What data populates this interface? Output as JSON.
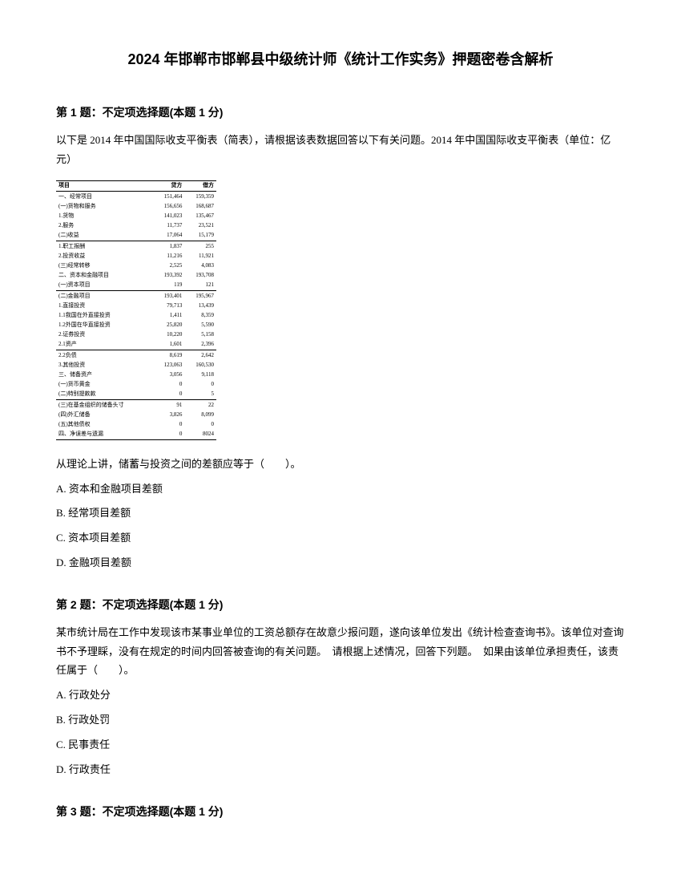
{
  "title": "2024 年邯郸市邯郸县中级统计师《统计工作实务》押题密卷含解析",
  "q1": {
    "header": "第 1 题：不定项选择题(本题 1 分)",
    "text": "以下是 2014 年中国国际收支平衡表（简表），请根据该表数据回答以下有关问题。2014 年中国国际收支平衡表（单位：亿元）",
    "prompt": "从理论上讲，储蓄与投资之间的差额应等于（　　）。",
    "options": {
      "a": "A. 资本和金融项目差额",
      "b": "B. 经常项目差额",
      "c": "C. 资本项目差额",
      "d": "D. 金融项目差额"
    }
  },
  "q2": {
    "header": "第 2 题：不定项选择题(本题 1 分)",
    "text": "某市统计局在工作中发现该市某事业单位的工资总额存在故意少报问题，遂向该单位发出《统计检查查询书》。该单位对查询书不予理睬，没有在规定的时间内回答被查询的有关问题。　请根据上述情况，回答下列题。　如果由该单位承担责任，该责任属于（　　）。",
    "options": {
      "a": "A. 行政处分",
      "b": "B. 行政处罚",
      "c": "C. 民事责任",
      "d": "D. 行政责任"
    }
  },
  "q3": {
    "header": "第 3 题：不定项选择题(本题 1 分)"
  },
  "table": {
    "headers": [
      "项目",
      "贷方",
      "借方"
    ],
    "rows": [
      {
        "cells": [
          "一、经常项目",
          "151,464",
          "159,359"
        ],
        "section": true
      },
      {
        "cells": [
          "(一)货物和服务",
          "156,656",
          "168,687"
        ],
        "section": false
      },
      {
        "cells": [
          "1.货物",
          "141,023",
          "135,467"
        ],
        "section": false
      },
      {
        "cells": [
          "2.服务",
          "11,737",
          "23,521"
        ],
        "section": false
      },
      {
        "cells": [
          "(二)收益",
          "17,064",
          "15,179"
        ],
        "section": false
      },
      {
        "cells": [
          "1.职工报酬",
          "1,837",
          "255"
        ],
        "section": true
      },
      {
        "cells": [
          "2.投资收益",
          "11,216",
          "11,921"
        ],
        "section": false
      },
      {
        "cells": [
          "(三)经常转移",
          "2,525",
          "4,083"
        ],
        "section": false
      },
      {
        "cells": [
          "二、资本和金融项目",
          "193,392",
          "193,708"
        ],
        "section": false
      },
      {
        "cells": [
          "(一)资本项目",
          "119",
          "121"
        ],
        "section": false
      },
      {
        "cells": [
          "(二)金融项目",
          "193,401",
          "195,967"
        ],
        "section": true
      },
      {
        "cells": [
          "1.直接投资",
          "79,713",
          "13,439"
        ],
        "section": false
      },
      {
        "cells": [
          "1.1我国在外直接投资",
          "1,411",
          "8,359"
        ],
        "section": false
      },
      {
        "cells": [
          "1.2外国在华直接投资",
          "25,820",
          "5,590"
        ],
        "section": false
      },
      {
        "cells": [
          "2.证券投资",
          "10,220",
          "5,158"
        ],
        "section": false
      },
      {
        "cells": [
          "2.1资产",
          "1,601",
          "2,396"
        ],
        "section": false
      },
      {
        "cells": [
          "2.2负债",
          "8,619",
          "2,642"
        ],
        "section": true
      },
      {
        "cells": [
          "3.其他投资",
          "123,063",
          "160,530"
        ],
        "section": false
      },
      {
        "cells": [
          "三、储备资产",
          "3,056",
          "9,118"
        ],
        "section": false
      },
      {
        "cells": [
          "(一)货币黄金",
          "0",
          "0"
        ],
        "section": false
      },
      {
        "cells": [
          "(二)特别提款款",
          "0",
          "5"
        ],
        "section": false
      },
      {
        "cells": [
          "(三)在基金组织的储备头寸",
          "91",
          "22"
        ],
        "section": true
      },
      {
        "cells": [
          "(四)外汇储备",
          "3,826",
          "8,099"
        ],
        "section": false
      },
      {
        "cells": [
          "(五)其他债权",
          "0",
          "0"
        ],
        "section": false
      },
      {
        "cells": [
          "四、净误差与遗漏",
          "0",
          "8024"
        ],
        "section": false
      }
    ]
  }
}
